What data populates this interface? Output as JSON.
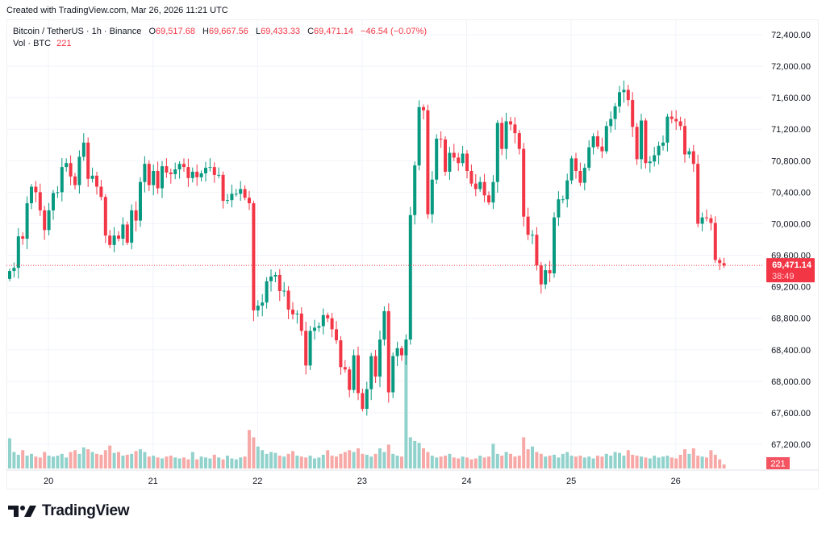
{
  "header": {
    "created": "Created with TradingView.com, Mar 26, 2026 11:21 UTC"
  },
  "legend": {
    "symbol": "Bitcoin / TetherUS · 1h · Binance",
    "open_label": "O",
    "open": "69,517.68",
    "high_label": "H",
    "high": "69,667.56",
    "low_label": "L",
    "low": "69,433.33",
    "close_label": "C",
    "close": "69,471.14",
    "change": "−46.54 (−0.07%)",
    "volume_label": "Vol · BTC",
    "volume": "221"
  },
  "price_badge": {
    "price": "69,471.14",
    "countdown": "38:49"
  },
  "volume_badge": "221",
  "logo": {
    "text": "TradingView"
  },
  "colors": {
    "up": "#089981",
    "down": "#f23645",
    "up_vol": "#92d2cc",
    "down_vol": "#f7a9a7",
    "grid": "#f0f3fa"
  },
  "chart_data": {
    "type": "candlestick",
    "title": "Bitcoin / TetherUS · 1h · Binance",
    "interval": "1h",
    "ylim": [
      67000,
      72600
    ],
    "y_ticks": [
      "72,400.00",
      "72,000.00",
      "71,600.00",
      "71,200.00",
      "70,800.00",
      "70,400.00",
      "70,000.00",
      "69,600.00",
      "69,200.00",
      "68,800.00",
      "68,400.00",
      "68,000.00",
      "67,600.00",
      "67,200.00"
    ],
    "y_tick_values": [
      72400,
      72000,
      71600,
      71200,
      70800,
      70400,
      70000,
      69600,
      69200,
      68800,
      68400,
      68000,
      67600,
      67200
    ],
    "x_ticks": [
      {
        "label": "20",
        "index": 9
      },
      {
        "label": "21",
        "index": 33
      },
      {
        "label": "22",
        "index": 57
      },
      {
        "label": "23",
        "index": 81
      },
      {
        "label": "24",
        "index": 105
      },
      {
        "label": "25",
        "index": 129
      },
      {
        "label": "26",
        "index": 153
      }
    ],
    "first_open": 69300,
    "last_price": 69471.14,
    "close": [
      69400,
      69440,
      69840,
      69810,
      70260,
      70470,
      70400,
      70170,
      69920,
      70170,
      70390,
      70400,
      70720,
      70770,
      70600,
      70490,
      70850,
      71030,
      70570,
      70610,
      70470,
      70340,
      69850,
      69730,
      69850,
      69810,
      69990,
      69760,
      70170,
      70040,
      70530,
      70760,
      70490,
      70670,
      70450,
      70730,
      70650,
      70630,
      70690,
      70760,
      70720,
      70580,
      70660,
      70590,
      70640,
      70710,
      70720,
      70620,
      70620,
      70290,
      70300,
      70380,
      70380,
      70440,
      70330,
      70260,
      68900,
      68960,
      69000,
      69270,
      69330,
      69350,
      69145,
      69150,
      68910,
      68850,
      68860,
      68640,
      68200,
      68640,
      68680,
      68700,
      68840,
      68800,
      68660,
      68520,
      68180,
      68150,
      67890,
      68330,
      67850,
      67650,
      67900,
      68320,
      68060,
      68530,
      68890,
      67860,
      68320,
      68420,
      68330,
      68530,
      70110,
      70740,
      71480,
      71440,
      70120,
      70560,
      71080,
      71070,
      70660,
      70900,
      70840,
      70770,
      70890,
      70670,
      70510,
      70440,
      70530,
      70360,
      70270,
      70530,
      71280,
      70950,
      71300,
      71260,
      71150,
      70950,
      70090,
      69860,
      69860,
      69470,
      69230,
      69410,
      69370,
      70080,
      70310,
      70310,
      70550,
      70830,
      70670,
      70520,
      70710,
      70970,
      71110,
      70980,
      70920,
      71240,
      71330,
      71490,
      71670,
      71700,
      71570,
      71230,
      70820,
      71310,
      70770,
      70790,
      70870,
      70990,
      71030,
      71360,
      71330,
      71300,
      71240,
      70880,
      70920,
      70760,
      70000,
      70080,
      70070,
      70010,
      69540,
      69500,
      69471.14
    ],
    "volume": [
      1650,
      900,
      750,
      1000,
      700,
      800,
      650,
      600,
      900,
      700,
      650,
      700,
      800,
      600,
      900,
      1000,
      800,
      1150,
      1050,
      900,
      800,
      750,
      1000,
      1250,
      850,
      900,
      700,
      750,
      800,
      950,
      1050,
      900,
      650,
      700,
      600,
      550,
      650,
      700,
      600,
      550,
      600,
      500,
      900,
      500,
      650,
      600,
      550,
      750,
      600,
      500,
      700,
      550,
      500,
      600,
      650,
      2100,
      1700,
      1200,
      1000,
      800,
      900,
      850,
      700,
      650,
      800,
      950,
      700,
      650,
      600,
      700,
      550,
      600,
      750,
      1000,
      700,
      650,
      800,
      900,
      1000,
      900,
      1100,
      800,
      750,
      650,
      800,
      1100,
      900,
      1300,
      800,
      700,
      650,
      6200,
      1700,
      1500,
      1400,
      1100,
      900,
      700,
      600,
      650,
      700,
      800,
      600,
      550,
      650,
      600,
      500,
      550,
      700,
      600,
      650,
      1350,
      800,
      700,
      900,
      800,
      650,
      700,
      1700,
      1050,
      1200,
      900,
      800,
      650,
      700,
      750,
      600,
      800,
      900,
      700,
      650,
      700,
      600,
      650,
      550,
      700,
      650,
      800,
      700,
      900,
      850,
      700,
      1000,
      750,
      700,
      650,
      600,
      550,
      700,
      600,
      650,
      700,
      600,
      550,
      750,
      1050,
      800,
      1100,
      700,
      650,
      600,
      1000,
      750,
      500,
      221
    ],
    "volume_unit": "BTC"
  }
}
